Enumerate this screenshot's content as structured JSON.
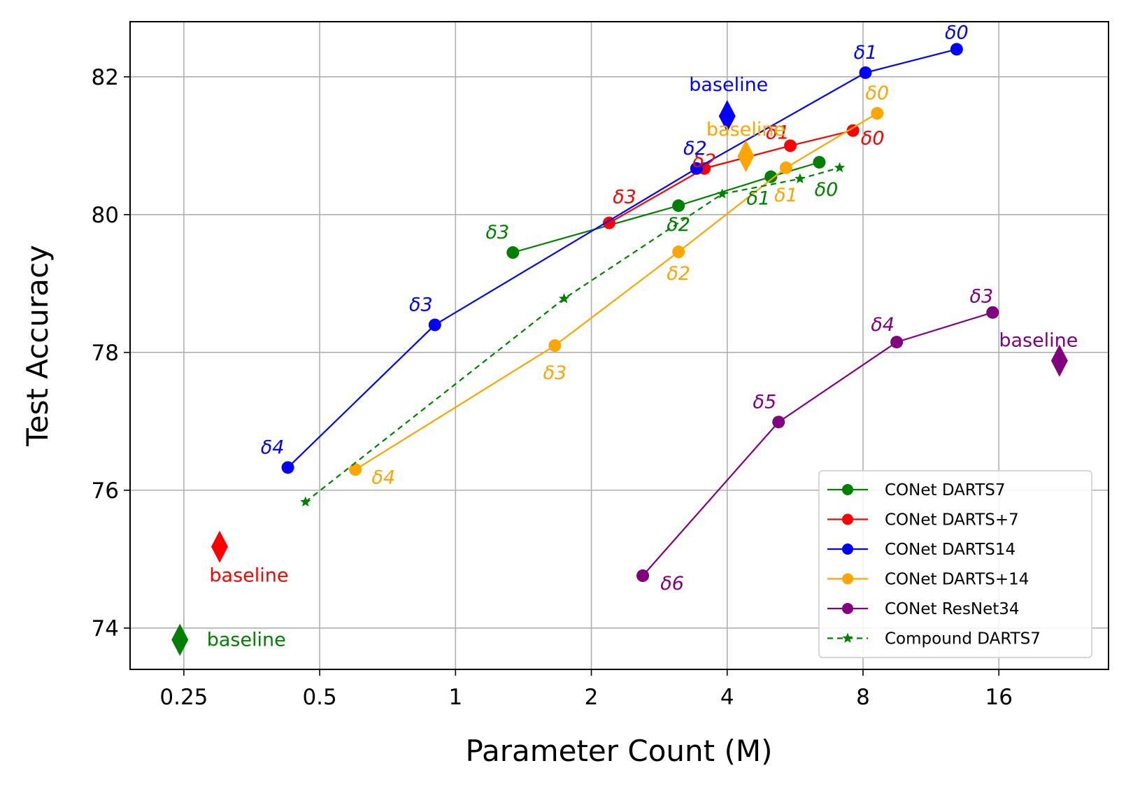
{
  "chart_data": {
    "type": "line",
    "title": "",
    "xlabel": "Parameter Count (M)",
    "ylabel": "Test Accuracy",
    "xscale": "log2",
    "xlim": [
      0.19,
      28
    ],
    "ylim": [
      73.4,
      82.8
    ],
    "xticks": [
      0.25,
      0.5,
      1,
      2,
      4,
      8,
      16
    ],
    "xtick_labels": [
      "0.25",
      "0.5",
      "1",
      "2",
      "4",
      "8",
      "16"
    ],
    "yticks": [
      74,
      76,
      78,
      80,
      82
    ],
    "ytick_labels": [
      "74",
      "76",
      "78",
      "80",
      "82"
    ],
    "grid": true,
    "legend_position": "bottom-right",
    "series": [
      {
        "name": "CONet DARTS7",
        "color": "#008000",
        "marker": "circle",
        "line_style": "solid",
        "points": [
          {
            "x": 1.34,
            "y": 79.45,
            "label": "δ3"
          },
          {
            "x": 3.12,
            "y": 80.13,
            "label": "δ2"
          },
          {
            "x": 5.0,
            "y": 80.55,
            "label": "δ1"
          },
          {
            "x": 6.4,
            "y": 80.76,
            "label": "δ0"
          }
        ],
        "baseline": {
          "x": 0.245,
          "y": 73.83,
          "label": "baseline"
        }
      },
      {
        "name": "CONet DARTS+7",
        "color": "#ff0000",
        "marker": "circle",
        "line_style": "solid",
        "points": [
          {
            "x": 2.19,
            "y": 79.88,
            "label": "δ3"
          },
          {
            "x": 3.56,
            "y": 80.67,
            "label": "δ2"
          },
          {
            "x": 5.52,
            "y": 81.0,
            "label": "δ1"
          },
          {
            "x": 7.6,
            "y": 81.22,
            "label": "δ0"
          }
        ],
        "baseline": {
          "x": 0.3,
          "y": 75.18,
          "label": "baseline"
        }
      },
      {
        "name": "CONet DARTS14",
        "color": "#0000ff",
        "marker": "circle",
        "line_style": "solid",
        "points": [
          {
            "x": 0.425,
            "y": 76.33,
            "label": "δ4"
          },
          {
            "x": 0.9,
            "y": 78.4,
            "label": "δ3"
          },
          {
            "x": 3.42,
            "y": 80.67,
            "label": "δ2"
          },
          {
            "x": 8.1,
            "y": 82.06,
            "label": "δ1"
          },
          {
            "x": 12.9,
            "y": 82.4,
            "label": "δ0"
          }
        ],
        "baseline": {
          "x": 4.0,
          "y": 81.43,
          "label": "baseline"
        }
      },
      {
        "name": "CONet DARTS+14",
        "color": "#ffa500",
        "marker": "circle",
        "line_style": "solid",
        "points": [
          {
            "x": 0.6,
            "y": 76.3,
            "label": "δ4"
          },
          {
            "x": 1.66,
            "y": 78.1,
            "label": "δ3"
          },
          {
            "x": 3.12,
            "y": 79.46,
            "label": "δ2"
          },
          {
            "x": 5.4,
            "y": 80.68,
            "label": "δ1"
          },
          {
            "x": 8.6,
            "y": 81.47,
            "label": "δ0"
          }
        ],
        "baseline": {
          "x": 4.4,
          "y": 80.85,
          "label": "baseline"
        }
      },
      {
        "name": "CONet ResNet34",
        "color": "#800080",
        "marker": "circle",
        "line_style": "solid",
        "points": [
          {
            "x": 2.6,
            "y": 74.76,
            "label": "δ6"
          },
          {
            "x": 5.2,
            "y": 76.99,
            "label": "δ5"
          },
          {
            "x": 9.5,
            "y": 78.15,
            "label": "δ4"
          },
          {
            "x": 15.5,
            "y": 78.58,
            "label": "δ3"
          }
        ],
        "baseline": {
          "x": 21.8,
          "y": 77.88,
          "label": "baseline"
        }
      },
      {
        "name": "Compound DARTS7",
        "color": "#008000",
        "marker": "star",
        "line_style": "dashed",
        "points": [
          {
            "x": 0.465,
            "y": 75.83
          },
          {
            "x": 1.74,
            "y": 78.78
          },
          {
            "x": 3.9,
            "y": 80.3
          },
          {
            "x": 5.8,
            "y": 80.52
          },
          {
            "x": 7.1,
            "y": 80.68
          }
        ]
      }
    ]
  }
}
